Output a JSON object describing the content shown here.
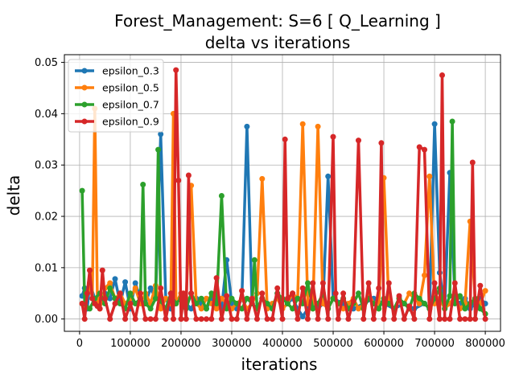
{
  "chart_data": {
    "type": "line",
    "title": "Forest_Management: S=6 [ Q_Learning ]",
    "subtitle": "delta vs iterations",
    "xlabel": "iterations",
    "ylabel": "delta",
    "xlim": [
      -30000,
      830000
    ],
    "ylim": [
      -0.0024,
      0.0515
    ],
    "xticks": [
      0,
      100000,
      200000,
      300000,
      400000,
      500000,
      600000,
      700000,
      800000
    ],
    "xtick_labels": [
      "0",
      "100000",
      "200000",
      "300000",
      "400000",
      "500000",
      "600000",
      "700000",
      "800000"
    ],
    "yticks": [
      0.0,
      0.01,
      0.02,
      0.03,
      0.04,
      0.05
    ],
    "ytick_labels": [
      "0.00",
      "0.01",
      "0.02",
      "0.03",
      "0.04",
      "0.05"
    ],
    "grid": true,
    "legend": "top-left",
    "series": [
      {
        "name": "epsilon_0.3",
        "color": "#1f77b4",
        "x": [
          5000,
          10000,
          15000,
          20000,
          30000,
          40000,
          50000,
          60000,
          70000,
          80000,
          90000,
          100000,
          110000,
          120000,
          130000,
          140000,
          150000,
          160000,
          170000,
          180000,
          190000,
          200000,
          210000,
          220000,
          230000,
          240000,
          250000,
          260000,
          270000,
          280000,
          290000,
          300000,
          310000,
          320000,
          330000,
          340000,
          350000,
          360000,
          370000,
          380000,
          390000,
          400000,
          410000,
          420000,
          430000,
          440000,
          450000,
          460000,
          470000,
          480000,
          490000,
          500000,
          520000,
          540000,
          560000,
          580000,
          600000,
          620000,
          640000,
          660000,
          680000,
          690000,
          700000,
          710000,
          720000,
          730000,
          740000,
          750000,
          760000,
          770000,
          780000,
          790000,
          800000
        ],
        "y": [
          0.0045,
          0.006,
          0.002,
          0.007,
          0.004,
          0.003,
          0.005,
          0.004,
          0.0078,
          0.003,
          0.0072,
          0.002,
          0.007,
          0.004,
          0.003,
          0.006,
          0.004,
          0.036,
          0.004,
          0.002,
          0.003,
          0.005,
          0.003,
          0.002,
          0.004,
          0.003,
          0.002,
          0.004,
          0.003,
          0.002,
          0.0115,
          0.003,
          0.002,
          0.004,
          0.0375,
          0.003,
          0.002,
          0.004,
          0.003,
          0.002,
          0.005,
          0.002,
          0.003,
          0.004,
          0.002,
          0.0005,
          0.002,
          0.003,
          0.002,
          0.003,
          0.0278,
          0.004,
          0.003,
          0.002,
          0.003,
          0.004,
          0.003,
          0.002,
          0.003,
          0.002,
          0.003,
          0.002,
          0.038,
          0.009,
          0.002,
          0.0285,
          0.004,
          0.003,
          0.004,
          0.002,
          0.003,
          0.004,
          0.003
        ]
      },
      {
        "name": "epsilon_0.5",
        "color": "#ff7f0e",
        "x": [
          5000,
          10000,
          20000,
          25000,
          30000,
          35000,
          40000,
          50000,
          60000,
          70000,
          80000,
          90000,
          100000,
          110000,
          120000,
          130000,
          140000,
          150000,
          160000,
          170000,
          180000,
          185000,
          190000,
          200000,
          210000,
          220000,
          230000,
          240000,
          250000,
          260000,
          270000,
          280000,
          290000,
          300000,
          310000,
          320000,
          330000,
          340000,
          350000,
          360000,
          370000,
          380000,
          390000,
          400000,
          410000,
          420000,
          430000,
          440000,
          450000,
          460000,
          470000,
          480000,
          490000,
          500000,
          510000,
          520000,
          530000,
          540000,
          550000,
          560000,
          570000,
          580000,
          590000,
          600000,
          610000,
          620000,
          630000,
          640000,
          650000,
          660000,
          670000,
          680000,
          690000,
          700000,
          710000,
          720000,
          730000,
          740000,
          750000,
          760000,
          770000,
          780000,
          790000,
          800000
        ],
        "y": [
          0.003,
          0.002,
          0.007,
          0.004,
          0.041,
          0.004,
          0.002,
          0.006,
          0.007,
          0.004,
          0.005,
          0.003,
          0.004,
          0.006,
          0.003,
          0.005,
          0.003,
          0.0065,
          0.002,
          0.004,
          0.003,
          0.04,
          0.003,
          0.005,
          0.004,
          0.026,
          0.003,
          0.002,
          0.004,
          0.003,
          0.002,
          0.004,
          0.003,
          0.002,
          0.003,
          0.004,
          0.002,
          0.003,
          0.005,
          0.0273,
          0.002,
          0.003,
          0.004,
          0.002,
          0.003,
          0.005,
          0.004,
          0.038,
          0.003,
          0.002,
          0.0375,
          0.003,
          0.002,
          0.004,
          0.003,
          0.002,
          0.003,
          0.004,
          0.002,
          0.003,
          0.005,
          0.003,
          0.002,
          0.0275,
          0.003,
          0.002,
          0.004,
          0.003,
          0.005,
          0.004,
          0.003,
          0.0085,
          0.0278,
          0.003,
          0.004,
          0.002,
          0.003,
          0.0045,
          0.002,
          0.003,
          0.019,
          0.004,
          0.003,
          0.0055
        ]
      },
      {
        "name": "epsilon_0.7",
        "color": "#2ca02c",
        "x": [
          5000,
          10000,
          20000,
          30000,
          40000,
          50000,
          60000,
          70000,
          80000,
          90000,
          100000,
          110000,
          120000,
          125000,
          130000,
          140000,
          150000,
          155000,
          160000,
          170000,
          180000,
          190000,
          200000,
          210000,
          220000,
          230000,
          240000,
          250000,
          260000,
          270000,
          280000,
          290000,
          300000,
          310000,
          320000,
          330000,
          340000,
          345000,
          350000,
          360000,
          370000,
          380000,
          390000,
          400000,
          410000,
          420000,
          430000,
          440000,
          450000,
          460000,
          470000,
          480000,
          490000,
          500000,
          510000,
          520000,
          530000,
          540000,
          550000,
          560000,
          570000,
          580000,
          590000,
          600000,
          610000,
          620000,
          630000,
          640000,
          650000,
          660000,
          670000,
          680000,
          690000,
          700000,
          710000,
          720000,
          730000,
          735000,
          740000,
          750000,
          760000,
          770000,
          780000,
          790000,
          800000
        ],
        "y": [
          0.025,
          0.003,
          0.002,
          0.004,
          0.005,
          0.003,
          0.006,
          0.004,
          0.003,
          0.002,
          0.005,
          0.003,
          0.004,
          0.0262,
          0.003,
          0.002,
          0.004,
          0.033,
          0.0035,
          0.002,
          0.005,
          0.003,
          0.004,
          0.002,
          0.005,
          0.003,
          0.004,
          0.002,
          0.005,
          0.003,
          0.024,
          0.002,
          0.004,
          0.003,
          0.002,
          0.004,
          0.003,
          0.0115,
          0.002,
          0.004,
          0.003,
          0.002,
          0.005,
          0.004,
          0.003,
          0.002,
          0.004,
          0.003,
          0.007,
          0.002,
          0.003,
          0.005,
          0.002,
          0.004,
          0.003,
          0.004,
          0.002,
          0.003,
          0.005,
          0.002,
          0.004,
          0.003,
          0.002,
          0.004,
          0.003,
          0.002,
          0.004,
          0.003,
          0.002,
          0.005,
          0.004,
          0.003,
          0.002,
          0.004,
          0.006,
          0.002,
          0.0045,
          0.0385,
          0.003,
          0.0045,
          0.002,
          0.003,
          0.004,
          0.002,
          0.001
        ]
      },
      {
        "name": "epsilon_0.9",
        "color": "#d62728",
        "x": [
          5000,
          10000,
          15000,
          20000,
          25000,
          30000,
          35000,
          40000,
          45000,
          50000,
          60000,
          70000,
          80000,
          90000,
          100000,
          110000,
          120000,
          130000,
          140000,
          150000,
          160000,
          170000,
          180000,
          185000,
          190000,
          195000,
          200000,
          205000,
          210000,
          215000,
          220000,
          230000,
          240000,
          250000,
          260000,
          270000,
          280000,
          290000,
          300000,
          310000,
          320000,
          330000,
          340000,
          350000,
          360000,
          370000,
          380000,
          390000,
          400000,
          405000,
          410000,
          420000,
          430000,
          440000,
          450000,
          460000,
          470000,
          480000,
          490000,
          500000,
          505000,
          510000,
          520000,
          530000,
          540000,
          550000,
          560000,
          570000,
          580000,
          590000,
          595000,
          600000,
          610000,
          620000,
          630000,
          640000,
          650000,
          660000,
          670000,
          680000,
          690000,
          700000,
          710000,
          715000,
          720000,
          730000,
          740000,
          750000,
          760000,
          770000,
          775000,
          780000,
          790000,
          800000
        ],
        "y": [
          0.003,
          0.0,
          0.005,
          0.0095,
          0.004,
          0.003,
          0.0025,
          0.002,
          0.0095,
          0.004,
          0.0,
          0.003,
          0.005,
          0.0,
          0.003,
          0.0,
          0.005,
          0.0,
          0.0,
          0.0,
          0.006,
          0.0,
          0.005,
          0.0,
          0.0485,
          0.027,
          0.0,
          0.005,
          0.0,
          0.028,
          0.005,
          0.0,
          0.0,
          0.0,
          0.0,
          0.008,
          0.0,
          0.0045,
          0.0,
          0.0,
          0.0055,
          0.0,
          0.004,
          0.0,
          0.005,
          0.0,
          0.0,
          0.006,
          0.0,
          0.035,
          0.004,
          0.005,
          0.0,
          0.006,
          0.0,
          0.007,
          0.0,
          0.007,
          0.0,
          0.0355,
          0.005,
          0.0,
          0.005,
          0.0,
          0.0035,
          0.0348,
          0.0,
          0.007,
          0.0,
          0.006,
          0.0343,
          0.0,
          0.007,
          0.0,
          0.0045,
          0.0,
          0.0025,
          0.0,
          0.0335,
          0.033,
          0.0,
          0.007,
          0.0,
          0.0475,
          0.0,
          0.0,
          0.007,
          0.0,
          0.0,
          0.0,
          0.0305,
          0.0,
          0.0065,
          0.0
        ]
      }
    ]
  }
}
